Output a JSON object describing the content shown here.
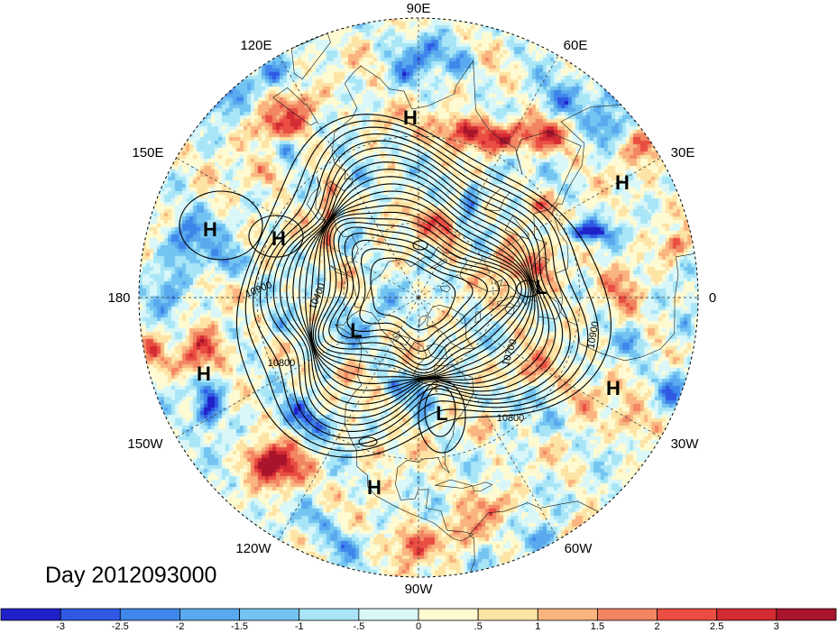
{
  "title": "Day 2012093000",
  "longitude_labels": [
    "90E",
    "60E",
    "30E",
    "0",
    "30W",
    "60W",
    "90W",
    "120W",
    "150W",
    "180",
    "150E",
    "120E"
  ],
  "pressure_centers": [
    "H",
    "H",
    "H",
    "H",
    "H",
    "H",
    "H",
    "L",
    "L",
    "L"
  ],
  "contour_labels": [
    "10400",
    "10900",
    "10800",
    "10700",
    "10900",
    "10800"
  ],
  "colorbar": {
    "labels": [
      "-3",
      "-2.5",
      "-2",
      "-1.5",
      "-1",
      "-.5",
      "0",
      ".5",
      "1",
      "1.5",
      "2",
      "2.5",
      "3"
    ],
    "colors": [
      "#2020c9",
      "#2f58e3",
      "#3f86ea",
      "#5aa9ef",
      "#74c4f2",
      "#a8e6f7",
      "#d9f7f9",
      "#fefad2",
      "#fde3a4",
      "#f9b47f",
      "#f28562",
      "#ea4e42",
      "#d22b33",
      "#a8142c"
    ]
  }
}
